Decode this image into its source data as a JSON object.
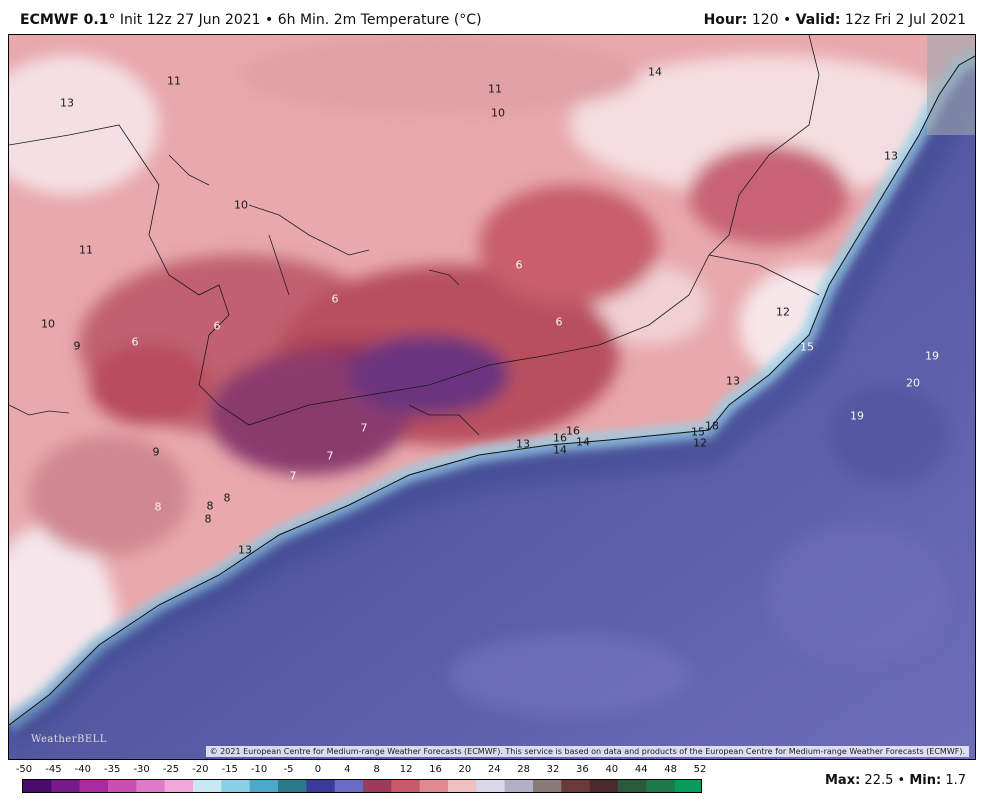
{
  "header": {
    "model": "ECMWF 0.1",
    "degree": "°",
    "init_text": "Init 12z 27 Jun 2021 • 6h Min. 2m Temperature (°C)",
    "hour_label": "Hour:",
    "hour_value": "120 •",
    "valid_label": "Valid:",
    "valid_value": "12z Fri 2 Jul 2021"
  },
  "map": {
    "copyright": "© 2021 European Centre for Medium-range Weather Forecasts (ECMWF). This service is based on data and products of the European Centre for Medium-range Weather Forecasts (ECMWF).",
    "logo": "WeatherBELL",
    "labels": [
      {
        "t": "13",
        "c": "dark"
      },
      {
        "t": "11",
        "c": "dark"
      },
      {
        "t": "11",
        "c": "dark"
      },
      {
        "t": "10",
        "c": "dark"
      },
      {
        "t": "14",
        "c": "dark"
      },
      {
        "t": "10",
        "c": "dark"
      },
      {
        "t": "11",
        "c": "dark"
      },
      {
        "t": "10",
        "c": "dark"
      },
      {
        "t": "9",
        "c": "dark"
      },
      {
        "t": "6",
        "c": "light"
      },
      {
        "t": "6",
        "c": "light"
      },
      {
        "t": "6",
        "c": "light"
      },
      {
        "t": "6",
        "c": "light"
      },
      {
        "t": "6",
        "c": "light"
      },
      {
        "t": "12",
        "c": "dark"
      },
      {
        "t": "15",
        "c": "light"
      },
      {
        "t": "13",
        "c": "dark"
      },
      {
        "t": "19",
        "c": "light"
      },
      {
        "t": "20",
        "c": "light"
      },
      {
        "t": "19",
        "c": "light"
      },
      {
        "t": "7",
        "c": "light"
      },
      {
        "t": "7",
        "c": "light"
      },
      {
        "t": "7",
        "c": "light"
      },
      {
        "t": "9",
        "c": "dark"
      },
      {
        "t": "8",
        "c": "light"
      },
      {
        "t": "8",
        "c": "dark"
      },
      {
        "t": "8",
        "c": "dark"
      },
      {
        "t": "8",
        "c": "dark"
      },
      {
        "t": "13",
        "c": "dark"
      },
      {
        "t": "13",
        "c": "dark"
      },
      {
        "t": "16",
        "c": "dark"
      },
      {
        "t": "14",
        "c": "dark"
      },
      {
        "t": "16",
        "c": "dark"
      },
      {
        "t": "14",
        "c": "dark"
      },
      {
        "t": "15",
        "c": "dark"
      },
      {
        "t": "18",
        "c": "dark"
      },
      {
        "t": "12",
        "c": "dark"
      },
      {
        "t": "13",
        "c": "dark"
      }
    ]
  },
  "scale": {
    "ticks": [
      "-50",
      "-45",
      "-40",
      "-35",
      "-30",
      "-25",
      "-20",
      "-15",
      "-10",
      "-5",
      "0",
      "4",
      "8",
      "12",
      "16",
      "20",
      "24",
      "28",
      "32",
      "36",
      "40",
      "44",
      "48",
      "52"
    ],
    "colors": [
      "#4a0a6e",
      "#7a1a8a",
      "#a82a9e",
      "#c850b0",
      "#e07ac8",
      "#f0a8dc",
      "#c8e8f4",
      "#8cd0e8",
      "#4aa8c8",
      "#2a7a8a",
      "#3a3a9a",
      "#6a6ac8",
      "#a03a5a",
      "#c85a6a",
      "#e08a90",
      "#f0c0c0",
      "#d8d8e8",
      "#b0b0c8",
      "#8a7a7a",
      "#6a3a3a",
      "#4a2a2a",
      "#2a5a3a",
      "#1a7a4a",
      "#0a9a5a"
    ]
  },
  "footer": {
    "max_label": "Max:",
    "max_value": "22.5",
    "sep": " • ",
    "min_label": "Min:",
    "min_value": "1.7"
  }
}
